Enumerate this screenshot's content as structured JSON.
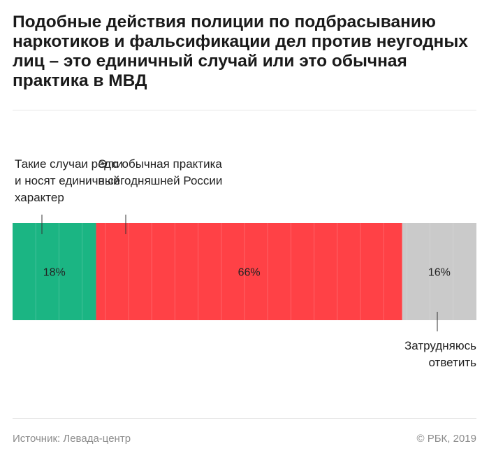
{
  "title": "Подобные действия полиции по подбрасыванию наркотиков и фальсификации дел против неугодных лиц – это единичный случай или это обычная практика в МВД",
  "chart_data": {
    "type": "bar",
    "orientation": "horizontal-stacked",
    "unit": "%",
    "series": [
      {
        "name": "Такие случаи редки и носят единичный характер",
        "label_lines": [
          "Такие случаи редки",
          "и носят единичный",
          "характер"
        ],
        "value": 18,
        "value_label": "18%",
        "color": "#1bb583",
        "label_position": "above"
      },
      {
        "name": "Это обычная практика в сегодняшней России",
        "label_lines": [
          "Это обычная практика",
          "в сегодняшней России"
        ],
        "value": 66,
        "value_label": "66%",
        "color": "#ff4146",
        "label_position": "above"
      },
      {
        "name": "Затрудняюсь ответить",
        "label_lines": [
          "Затрудняюсь",
          "ответить"
        ],
        "value": 16,
        "value_label": "16%",
        "color": "#cacaca",
        "label_position": "below"
      }
    ],
    "grid": true
  },
  "footer": {
    "source": "Источник: Левада-центр",
    "copyright": "© РБК, 2019"
  }
}
